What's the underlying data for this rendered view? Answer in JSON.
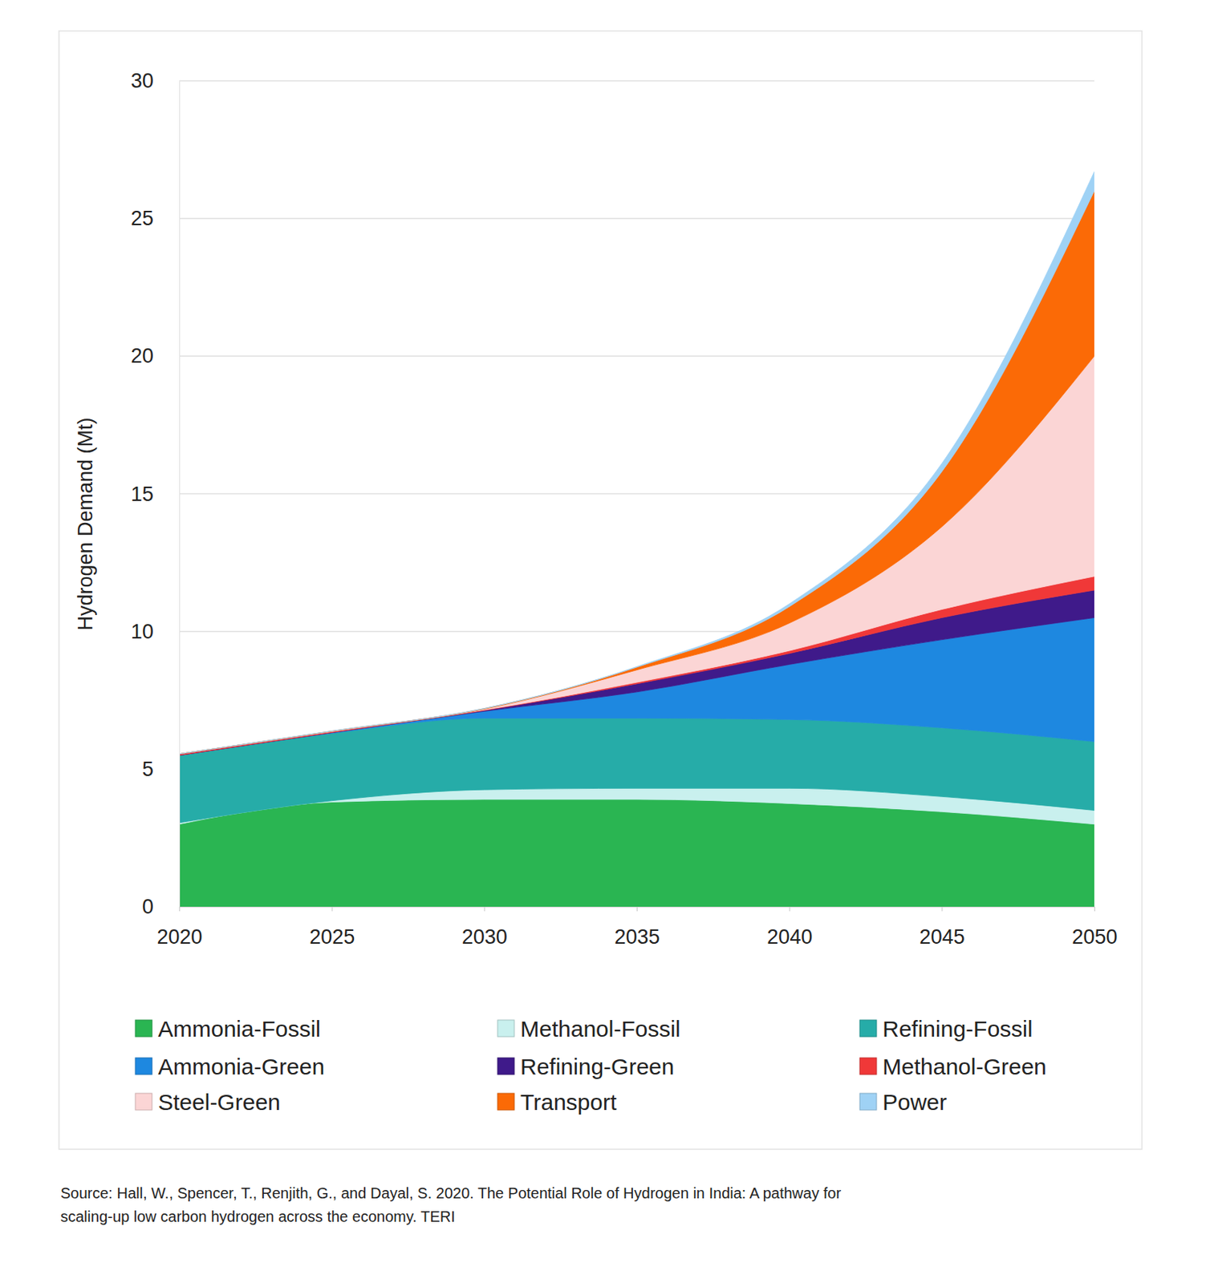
{
  "chart_data": {
    "type": "area",
    "stacked": true,
    "grid": true,
    "y_label": "Hydrogen Demand (Mt)",
    "source": [
      "Source: Hall, W., Spencer, T., Renjith, G., and Dayal, S. 2020. The Potential Role of Hydrogen in India: A pathway for",
      "scaling-up low carbon hydrogen across the economy. TERI"
    ],
    "x": [
      2020,
      2025,
      2030,
      2035,
      2040,
      2045,
      2050
    ],
    "xlim": [
      2020,
      2050
    ],
    "xticks": [
      2020,
      2025,
      2030,
      2035,
      2040,
      2045,
      2050
    ],
    "ylim": [
      0,
      30
    ],
    "yticks": [
      0,
      5,
      10,
      15,
      20,
      25,
      30
    ],
    "legend": "bottom",
    "series": [
      {
        "name": "Ammonia-Fossil",
        "color": "#2ab552",
        "values": [
          3.0,
          3.8,
          3.9,
          3.9,
          3.75,
          3.45,
          3.0
        ]
      },
      {
        "name": "Methanol-Fossil",
        "color": "#c9f0ee",
        "values": [
          0.05,
          0.05,
          0.35,
          0.4,
          0.55,
          0.55,
          0.5
        ]
      },
      {
        "name": "Refining-Fossil",
        "color": "#26aca8",
        "values": [
          2.45,
          2.45,
          2.6,
          2.55,
          2.5,
          2.5,
          2.5
        ]
      },
      {
        "name": "Ammonia-Green",
        "color": "#1e88e0",
        "values": [
          0.0,
          0.02,
          0.25,
          0.95,
          2.0,
          3.2,
          4.5
        ]
      },
      {
        "name": "Refining-Green",
        "color": "#3f1a8a",
        "values": [
          0.0,
          0.01,
          0.03,
          0.3,
          0.4,
          0.8,
          1.0
        ]
      },
      {
        "name": "Methanol-Green",
        "color": "#f03838",
        "values": [
          0.05,
          0.03,
          0.02,
          0.05,
          0.1,
          0.3,
          0.5
        ]
      },
      {
        "name": "Steel-Green",
        "color": "#fbd5d5",
        "values": [
          0.0,
          0.01,
          0.03,
          0.45,
          1.0,
          3.0,
          8.0
        ]
      },
      {
        "name": "Transport",
        "color": "#fb6a06",
        "values": [
          0.0,
          0.01,
          0.02,
          0.1,
          0.6,
          2.0,
          6.0
        ]
      },
      {
        "name": "Power",
        "color": "#9fd2f5",
        "values": [
          0.0,
          0.0,
          0.0,
          0.02,
          0.1,
          0.3,
          0.7
        ]
      }
    ]
  }
}
